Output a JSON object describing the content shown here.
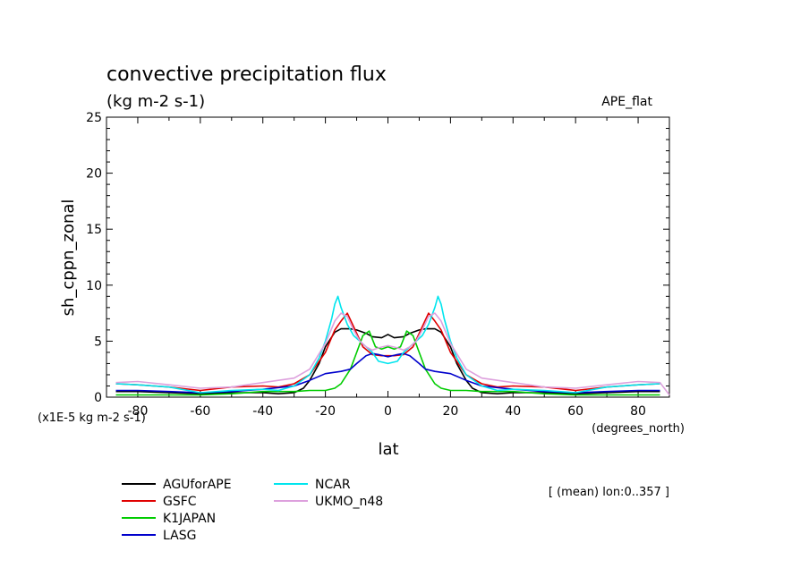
{
  "chart_data": {
    "type": "line",
    "title": "convective precipitation flux",
    "subtitle": "(kg m-2 s-1)",
    "tag": "APE_flat",
    "ylabel": "sh_cppn_zonal",
    "xlabel": "lat",
    "x_unit_label": "(degrees_north)",
    "y_scale_label": "(x1E-5 kg m-2 s-1)",
    "note": "[ (mean) lon:0..357 ]",
    "xlim": [
      -90,
      90
    ],
    "ylim": [
      0,
      25
    ],
    "x_ticks": [
      -80,
      -60,
      -40,
      -20,
      0,
      20,
      40,
      60,
      80
    ],
    "y_ticks": [
      0,
      5,
      10,
      15,
      20,
      25
    ],
    "grid": false,
    "legend_position": "bottom",
    "series": [
      {
        "name": "AGUforAPE",
        "color": "#000000",
        "x": [
          -87,
          -80,
          -70,
          -60,
          -50,
          -40,
          -35,
          -30,
          -27,
          -25,
          -22,
          -20,
          -17,
          -15,
          -12,
          -10,
          -7,
          -5,
          -2,
          0,
          2,
          5,
          7,
          10,
          12,
          15,
          17,
          20,
          22,
          25,
          27,
          30,
          35,
          40,
          50,
          60,
          70,
          80,
          87
        ],
        "y": [
          0.5,
          0.5,
          0.4,
          0.3,
          0.4,
          0.4,
          0.3,
          0.4,
          0.8,
          1.5,
          3.0,
          4.5,
          5.8,
          6.1,
          6.1,
          6.0,
          5.7,
          5.4,
          5.3,
          5.6,
          5.3,
          5.4,
          5.7,
          6.0,
          6.1,
          6.1,
          5.8,
          4.5,
          3.0,
          1.5,
          0.8,
          0.4,
          0.3,
          0.4,
          0.4,
          0.3,
          0.4,
          0.5,
          0.5
        ]
      },
      {
        "name": "GSFC",
        "color": "#e00000",
        "x": [
          -87,
          -80,
          -70,
          -60,
          -50,
          -40,
          -35,
          -30,
          -25,
          -20,
          -17,
          -15,
          -13,
          -11,
          -8,
          -5,
          -2,
          0,
          2,
          5,
          8,
          11,
          13,
          15,
          17,
          20,
          25,
          30,
          35,
          40,
          50,
          60,
          70,
          80,
          87
        ],
        "y": [
          1.2,
          1.1,
          0.9,
          0.6,
          0.9,
          1.0,
          0.9,
          1.2,
          2.0,
          4.0,
          6.0,
          6.8,
          7.5,
          6.3,
          4.5,
          3.8,
          3.7,
          3.7,
          3.7,
          3.8,
          4.5,
          6.3,
          7.5,
          6.8,
          6.0,
          4.0,
          2.0,
          1.2,
          0.9,
          1.0,
          0.9,
          0.6,
          0.9,
          1.1,
          1.2
        ]
      },
      {
        "name": "K1JAPAN",
        "color": "#00cc00",
        "x": [
          -87,
          -80,
          -70,
          -60,
          -50,
          -40,
          -35,
          -30,
          -25,
          -20,
          -17,
          -15,
          -12,
          -10,
          -8,
          -6,
          -4,
          -2,
          0,
          2,
          4,
          6,
          8,
          10,
          12,
          15,
          17,
          20,
          25,
          30,
          35,
          40,
          50,
          60,
          70,
          80,
          87
        ],
        "y": [
          0.2,
          0.2,
          0.2,
          0.2,
          0.3,
          0.5,
          0.5,
          0.5,
          0.6,
          0.6,
          0.8,
          1.2,
          2.5,
          4.0,
          5.5,
          5.9,
          4.5,
          4.3,
          4.5,
          4.3,
          4.5,
          5.9,
          5.5,
          4.0,
          2.5,
          1.2,
          0.8,
          0.6,
          0.6,
          0.5,
          0.5,
          0.5,
          0.3,
          0.2,
          0.2,
          0.2,
          0.2
        ]
      },
      {
        "name": "LASG",
        "color": "#0000cc",
        "x": [
          -87,
          -80,
          -70,
          -60,
          -50,
          -40,
          -30,
          -25,
          -20,
          -15,
          -12,
          -10,
          -7,
          -5,
          -3,
          0,
          3,
          5,
          7,
          10,
          12,
          15,
          20,
          25,
          30,
          40,
          50,
          60,
          70,
          80,
          87
        ],
        "y": [
          0.6,
          0.6,
          0.5,
          0.4,
          0.5,
          0.7,
          1.0,
          1.5,
          2.1,
          2.3,
          2.5,
          3.0,
          3.7,
          3.9,
          3.8,
          3.6,
          3.8,
          3.9,
          3.7,
          3.0,
          2.5,
          2.3,
          2.1,
          1.5,
          1.0,
          0.7,
          0.5,
          0.4,
          0.5,
          0.6,
          0.6
        ]
      },
      {
        "name": "NCAR",
        "color": "#00e5ee",
        "x": [
          -87,
          -80,
          -70,
          -60,
          -50,
          -40,
          -35,
          -30,
          -25,
          -22,
          -20,
          -18,
          -17,
          -16,
          -15,
          -13,
          -11,
          -9,
          -7,
          -5,
          -3,
          0,
          3,
          5,
          7,
          9,
          11,
          13,
          15,
          16,
          17,
          18,
          20,
          22,
          25,
          30,
          35,
          40,
          50,
          60,
          70,
          80,
          87
        ],
        "y": [
          1.2,
          1.1,
          0.9,
          0.4,
          0.6,
          0.7,
          0.6,
          1.0,
          2.0,
          3.5,
          5.0,
          7.0,
          8.3,
          9.0,
          8.0,
          6.5,
          5.5,
          5.0,
          4.5,
          4.0,
          3.2,
          3.0,
          3.2,
          4.0,
          4.5,
          5.0,
          5.5,
          6.5,
          8.0,
          9.0,
          8.3,
          7.0,
          5.0,
          3.5,
          2.0,
          1.0,
          0.6,
          0.7,
          0.6,
          0.4,
          0.9,
          1.1,
          1.2
        ]
      },
      {
        "name": "UKMO_n48",
        "color": "#dda0dd",
        "x": [
          -87,
          -80,
          -70,
          -60,
          -50,
          -40,
          -35,
          -30,
          -25,
          -20,
          -17,
          -15,
          -13,
          -11,
          -9,
          -7,
          -5,
          -3,
          0,
          3,
          5,
          7,
          9,
          11,
          13,
          15,
          17,
          20,
          25,
          30,
          35,
          40,
          50,
          60,
          70,
          80,
          87,
          90
        ],
        "y": [
          1.3,
          1.4,
          1.1,
          0.8,
          0.9,
          1.3,
          1.5,
          1.7,
          2.5,
          4.8,
          6.8,
          7.5,
          7.2,
          6.0,
          5.0,
          4.5,
          4.2,
          4.4,
          4.6,
          4.4,
          4.2,
          4.5,
          5.0,
          6.0,
          7.2,
          7.5,
          6.8,
          4.8,
          2.5,
          1.7,
          1.5,
          1.3,
          0.9,
          0.8,
          1.1,
          1.4,
          1.3,
          0.2
        ]
      }
    ]
  }
}
